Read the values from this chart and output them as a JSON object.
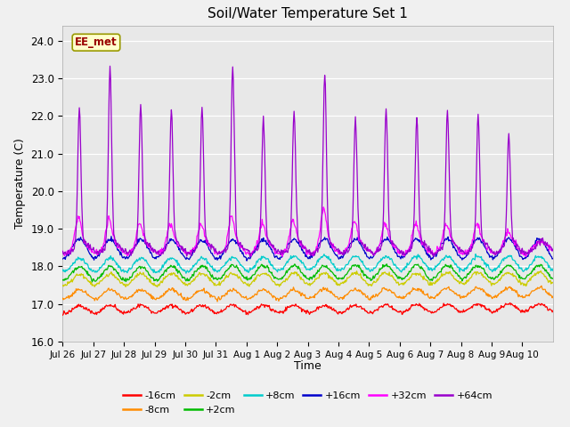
{
  "title": "Soil/Water Temperature Set 1",
  "xlabel": "Time",
  "ylabel": "Temperature (C)",
  "ylim": [
    16.0,
    24.4
  ],
  "yticks": [
    16.0,
    17.0,
    18.0,
    19.0,
    20.0,
    21.0,
    22.0,
    23.0,
    24.0
  ],
  "fig_facecolor": "#f0f0f0",
  "ax_facecolor": "#e8e8e8",
  "watermark": "EE_met",
  "series_order": [
    "-16cm",
    "-8cm",
    "-2cm",
    "+2cm",
    "+8cm",
    "+16cm",
    "+32cm",
    "+64cm"
  ],
  "colors": {
    "-16cm": "#ff0000",
    "-8cm": "#ff8c00",
    "-2cm": "#cccc00",
    "+2cm": "#00bb00",
    "+8cm": "#00cccc",
    "+16cm": "#0000cc",
    "+32cm": "#ff00ff",
    "+64cm": "#9900cc"
  },
  "bases": {
    "-16cm": 16.85,
    "-8cm": 17.25,
    "-2cm": 17.65,
    "+2cm": 17.82,
    "+8cm": 18.05,
    "+16cm": 18.45,
    "+32cm": 18.5,
    "+64cm": 18.5
  },
  "x_tick_labels": [
    "Jul 26",
    "Jul 27",
    "Jul 28",
    "Jul 29",
    "Jul 30",
    "Jul 31",
    "Aug 1",
    "Aug 2",
    "Aug 3",
    "Aug 4",
    "Aug 5",
    "Aug 6",
    "Aug 7",
    "Aug 8",
    "Aug 9",
    "Aug 10"
  ],
  "legend_row1": [
    "-16cm",
    "-8cm",
    "-2cm",
    "+2cm",
    "+8cm",
    "+16cm"
  ],
  "legend_row2": [
    "+32cm",
    "+64cm"
  ],
  "spike64_days": [
    0.55,
    1.55,
    2.55,
    3.55,
    4.55,
    5.55,
    6.55,
    7.55,
    8.55,
    9.55,
    10.55,
    11.55,
    12.55,
    13.55,
    14.55
  ],
  "spike64_heights": [
    3.6,
    4.7,
    3.7,
    3.5,
    3.6,
    4.7,
    3.3,
    3.5,
    4.5,
    3.3,
    3.5,
    3.3,
    3.5,
    3.4,
    2.9
  ],
  "spike32_days": [
    0.5,
    1.5,
    2.5,
    3.5,
    4.5,
    5.5,
    6.5,
    7.5,
    8.5,
    9.5,
    10.5,
    11.5,
    12.5,
    13.5,
    14.5
  ],
  "spike32_heights": [
    0.7,
    0.6,
    0.5,
    0.5,
    0.5,
    0.7,
    0.5,
    0.6,
    0.9,
    0.6,
    0.5,
    0.5,
    0.5,
    0.5,
    0.3
  ]
}
